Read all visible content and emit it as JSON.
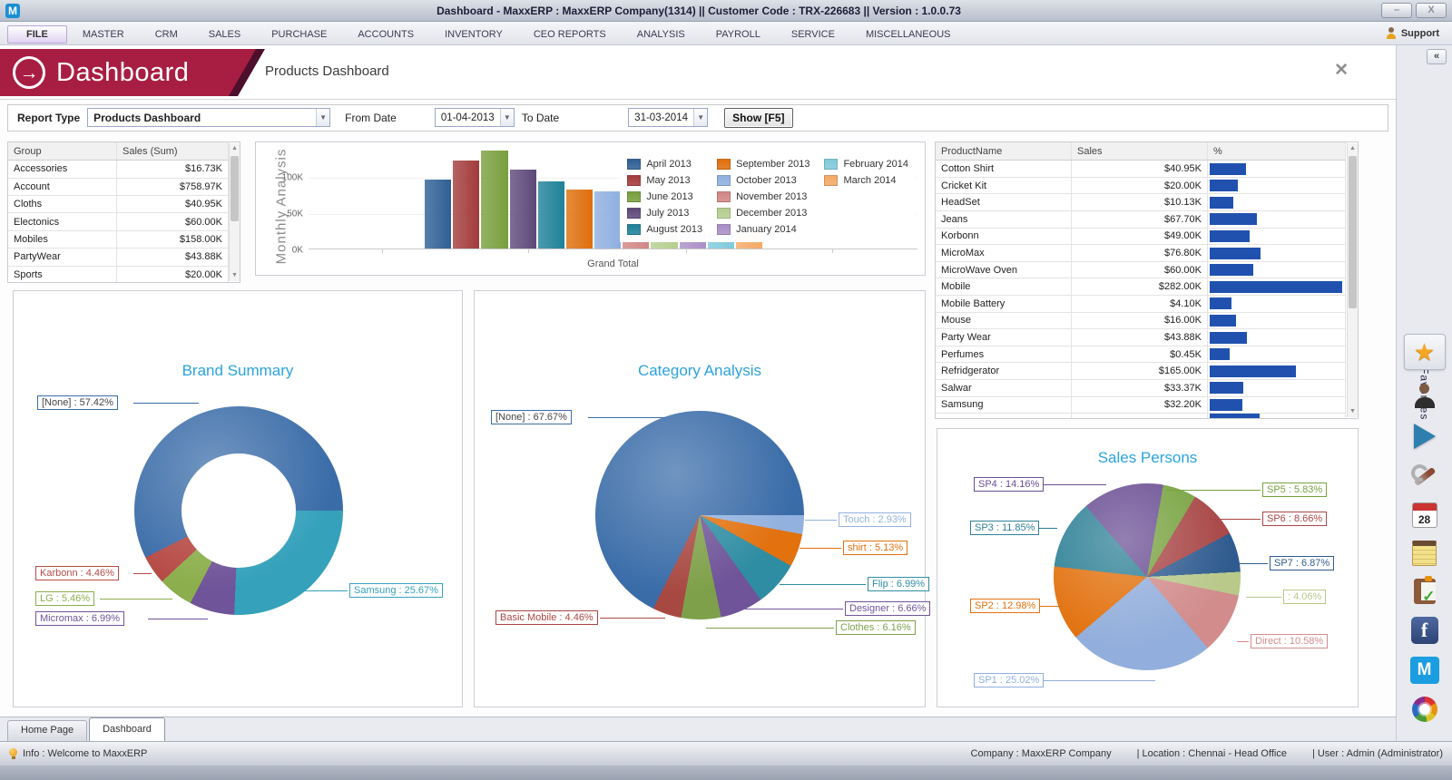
{
  "window": {
    "logo_letter": "M",
    "title": "Dashboard - MaxxERP : MaxxERP Company(1314)  ||  Customer Code : TRX-226683  ||  Version : 1.0.0.73",
    "minimize_glyph": "–",
    "close_glyph": "X"
  },
  "menu": {
    "items": [
      "FILE",
      "MASTER",
      "CRM",
      "SALES",
      "PURCHASE",
      "ACCOUNTS",
      "INVENTORY",
      "CEO REPORTS",
      "ANALYSIS",
      "PAYROLL",
      "SERVICE",
      "MISCELLANEOUS"
    ],
    "active_item": "FILE",
    "support_label": "Support"
  },
  "header": {
    "ribbon_title": "Dashboard",
    "page_title": "Products Dashboard",
    "close_glyph": "✕",
    "ribbon_color": "#a81e42"
  },
  "filters": {
    "report_type_label": "Report Type",
    "report_type_value": "Products Dashboard",
    "from_label": "From Date",
    "from_value": "01-04-2013",
    "to_label": "To Date",
    "to_value": "31-03-2014",
    "show_button": "Show [F5]"
  },
  "group_table": {
    "headers": [
      "Group",
      "Sales (Sum)"
    ],
    "rows": [
      {
        "group": "Accessories",
        "sales": "$16.73K"
      },
      {
        "group": "Account",
        "sales": "$758.97K"
      },
      {
        "group": "Cloths",
        "sales": "$40.95K"
      },
      {
        "group": "Electonics",
        "sales": "$60.00K"
      },
      {
        "group": "Mobiles",
        "sales": "$158.00K"
      },
      {
        "group": "PartyWear",
        "sales": "$43.88K"
      },
      {
        "group": "Sports",
        "sales": "$20.00K"
      }
    ]
  },
  "product_table": {
    "headers": [
      "ProductName",
      "Sales",
      "%"
    ],
    "bar_color": "#2051ae",
    "rows": [
      {
        "name": "Cotton Shirt",
        "sales": "$40.95K",
        "sales_k": 40.95
      },
      {
        "name": "Cricket Kit",
        "sales": "$20.00K",
        "sales_k": 20.0
      },
      {
        "name": "HeadSet",
        "sales": "$10.13K",
        "sales_k": 10.13
      },
      {
        "name": "Jeans",
        "sales": "$67.70K",
        "sales_k": 67.7
      },
      {
        "name": "Korbonn",
        "sales": "$49.00K",
        "sales_k": 49.0
      },
      {
        "name": "MicroMax",
        "sales": "$76.80K",
        "sales_k": 76.8
      },
      {
        "name": "MicroWave Oven",
        "sales": "$60.00K",
        "sales_k": 60.0
      },
      {
        "name": "Mobile",
        "sales": "$282.00K",
        "sales_k": 282.0
      },
      {
        "name": "Mobile Battery",
        "sales": "$4.10K",
        "sales_k": 4.1
      },
      {
        "name": "Mouse",
        "sales": "$16.00K",
        "sales_k": 16.0
      },
      {
        "name": "Party Wear",
        "sales": "$43.88K",
        "sales_k": 43.88
      },
      {
        "name": "Perfumes",
        "sales": "$0.45K",
        "sales_k": 0.45
      },
      {
        "name": "Refridgerator",
        "sales": "$165.00K",
        "sales_k": 165.0
      },
      {
        "name": "Salwar",
        "sales": "$33.37K",
        "sales_k": 33.37
      },
      {
        "name": "Samsung",
        "sales": "$32.20K",
        "sales_k": 32.2
      },
      {
        "name": "",
        "sales": "",
        "sales_k": 75.0,
        "partial": true
      }
    ]
  },
  "chart_data": [
    {
      "id": "monthly",
      "type": "bar",
      "title": "Monthly Analysis",
      "xlabel": "Grand Total",
      "ylim": [
        0,
        140
      ],
      "yticks": [
        {
          "label": "0K",
          "value": 0
        },
        {
          "label": "50K",
          "value": 50
        },
        {
          "label": "100K",
          "value": 100
        }
      ],
      "legend_position": "overlay-right",
      "categories": [
        "April 2013",
        "May 2013",
        "June 2013",
        "July 2013",
        "August 2013",
        "September 2013",
        "October 2013",
        "November 2013",
        "December 2013",
        "January 2014",
        "February 2014",
        "March 2014"
      ],
      "values": [
        94,
        121,
        134,
        108,
        92,
        81,
        79,
        20,
        20,
        20,
        20,
        20
      ],
      "colors": [
        "#2e5f94",
        "#a33b3b",
        "#789f3d",
        "#5e4879",
        "#1f8198",
        "#de6e0c",
        "#8eafdf",
        "#d18585",
        "#b5ce8e",
        "#a98fc8",
        "#7ec9db",
        "#f4a865"
      ],
      "hidden_behind_legend": [
        "November 2013",
        "December 2013",
        "January 2014",
        "February 2014",
        "March 2014"
      ]
    },
    {
      "id": "brand",
      "type": "donut",
      "title": "Brand Summary",
      "start_deg": -116.7,
      "slices": [
        {
          "name": "[None]",
          "pct": 57.42,
          "color": "#3a6ca8"
        },
        {
          "name": "Samsung",
          "pct": 25.67,
          "color": "#35a1bb"
        },
        {
          "name": "Micromax",
          "pct": 6.99,
          "color": "#6f5499"
        },
        {
          "name": "LG",
          "pct": 5.46,
          "color": "#8cae4c"
        },
        {
          "name": "Karbonn",
          "pct": 4.46,
          "color": "#b64a45"
        }
      ]
    },
    {
      "id": "category",
      "type": "pie",
      "title": "Category Analysis",
      "start_deg": 90,
      "slices": [
        {
          "name": "Touch",
          "pct": 2.93,
          "color": "#92b1de"
        },
        {
          "name": "shirt",
          "pct": 5.13,
          "color": "#e2710e"
        },
        {
          "name": "Flip",
          "pct": 6.99,
          "color": "#2f8da3"
        },
        {
          "name": "Designer",
          "pct": 6.66,
          "color": "#6f5499"
        },
        {
          "name": "Clothes",
          "pct": 6.16,
          "color": "#7fa04a"
        },
        {
          "name": "Basic Mobile",
          "pct": 4.46,
          "color": "#a84842"
        },
        {
          "name": "[None]",
          "pct": 67.67,
          "color": "#3a6ca8"
        }
      ]
    },
    {
      "id": "salespersons",
      "type": "pie",
      "title": "Sales Persons",
      "start_deg": 10,
      "slices": [
        {
          "name": "SP5",
          "pct": 5.83,
          "color": "#77a23f"
        },
        {
          "name": "SP6",
          "pct": 8.66,
          "color": "#a84545"
        },
        {
          "name": "SP7",
          "pct": 6.87,
          "color": "#2f5b8f"
        },
        {
          "name": "",
          "pct": 4.06,
          "color": "#b8c98a"
        },
        {
          "name": "Direct",
          "pct": 10.58,
          "color": "#d28c8c"
        },
        {
          "name": "SP1",
          "pct": 25.02,
          "color": "#92aedc"
        },
        {
          "name": "SP2",
          "pct": 12.98,
          "color": "#e2710e"
        },
        {
          "name": "SP3",
          "pct": 11.85,
          "color": "#2e8096"
        },
        {
          "name": "SP4",
          "pct": 14.16,
          "color": "#6a4e93"
        }
      ]
    }
  ],
  "tabs": {
    "items": [
      "Home Page",
      "Dashboard"
    ],
    "active": "Dashboard"
  },
  "status_bar": {
    "info": "Info : Welcome to MaxxERP",
    "company": "Company : MaxxERP Company",
    "location": "| Location : Chennai - Head Office",
    "user": "| User : Admin (Administrator)"
  },
  "sidebar": {
    "collapse_glyph": "«",
    "favorites_label": "Favorites",
    "calendar_day": "28",
    "icons": [
      "star",
      "support-person",
      "play",
      "tools",
      "calendar",
      "notes",
      "clipboard",
      "facebook",
      "maxxerp",
      "swirl"
    ]
  }
}
